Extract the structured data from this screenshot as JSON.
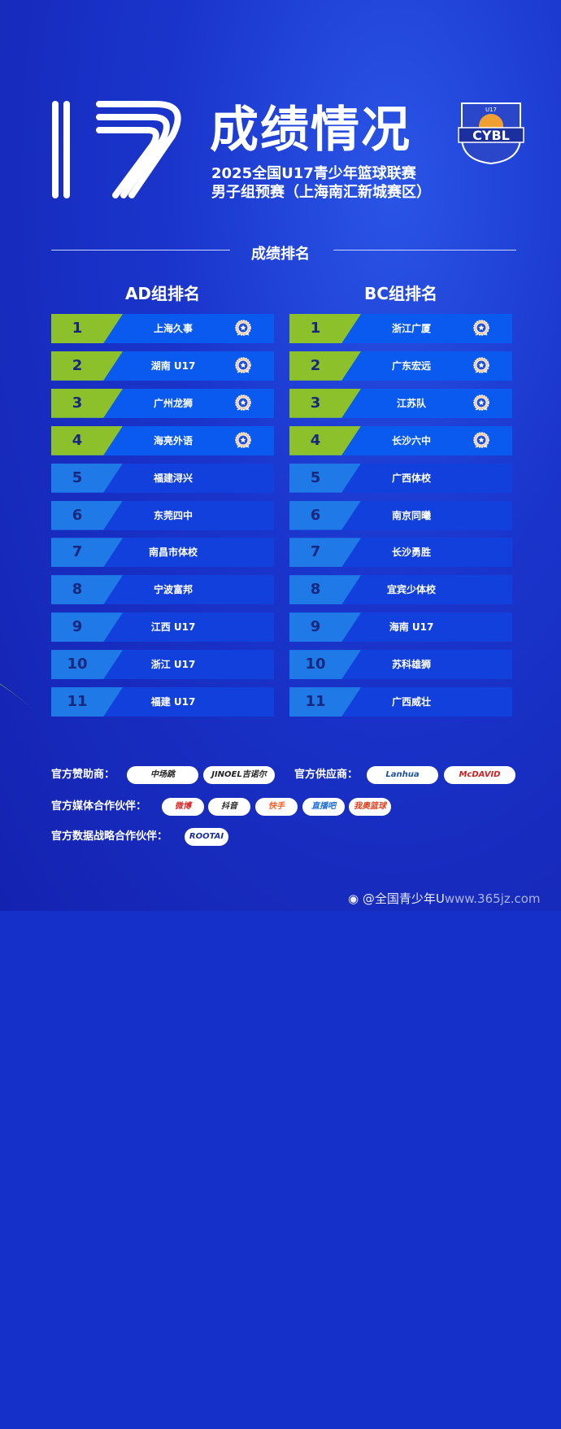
{
  "header": {
    "number_graphic": "17",
    "title": "成绩情况",
    "subtitle_line1": "2025全国U17青少年篮球联赛",
    "subtitle_line2": "男子组预赛（上海南汇新城赛区）",
    "logo_text": "CYBL",
    "logo_badge": "U17"
  },
  "section_title": "成绩排名",
  "groups": [
    {
      "title": "AD组排名",
      "rows": [
        {
          "rank": "1",
          "team": "上海久事",
          "medal": true
        },
        {
          "rank": "2",
          "team": "湖南 U17",
          "medal": true
        },
        {
          "rank": "3",
          "team": "广州龙狮",
          "medal": true
        },
        {
          "rank": "4",
          "team": "海亮外语",
          "medal": true
        },
        {
          "rank": "5",
          "team": "福建浔兴",
          "medal": false
        },
        {
          "rank": "6",
          "team": "东莞四中",
          "medal": false
        },
        {
          "rank": "7",
          "team": "南昌市体校",
          "medal": false
        },
        {
          "rank": "8",
          "team": "宁波富邦",
          "medal": false
        },
        {
          "rank": "9",
          "team": "江西 U17",
          "medal": false
        },
        {
          "rank": "10",
          "team": "浙江 U17",
          "medal": false
        },
        {
          "rank": "11",
          "team": "福建 U17",
          "medal": false
        }
      ]
    },
    {
      "title": "BC组排名",
      "rows": [
        {
          "rank": "1",
          "team": "浙江广厦",
          "medal": true
        },
        {
          "rank": "2",
          "team": "广东宏远",
          "medal": true
        },
        {
          "rank": "3",
          "team": "江苏队",
          "medal": true
        },
        {
          "rank": "4",
          "team": "长沙六中",
          "medal": true
        },
        {
          "rank": "5",
          "team": "广西体校",
          "medal": false
        },
        {
          "rank": "6",
          "team": "南京同曦",
          "medal": false
        },
        {
          "rank": "7",
          "team": "长沙勇胜",
          "medal": false
        },
        {
          "rank": "8",
          "team": "宜宾少体校",
          "medal": false
        },
        {
          "rank": "9",
          "team": "海南 U17",
          "medal": false
        },
        {
          "rank": "10",
          "team": "苏科雄狮",
          "medal": false
        },
        {
          "rank": "11",
          "team": "广西威壮",
          "medal": false
        }
      ]
    }
  ],
  "sponsors": {
    "sponsor_label": "官方赞助商：",
    "sponsor_logos": [
      "中场跳",
      "JINOEL吉诺尔"
    ],
    "supplier_label": "官方供应商：",
    "supplier_logos": [
      "Lanhua",
      "McDAVID"
    ],
    "media_label": "官方媒体合作伙伴：",
    "media_logos": [
      "微博",
      "抖音",
      "快手",
      "直播吧",
      "我奥篮球"
    ],
    "data_label": "官方数据战略合作伙伴：",
    "data_logos": [
      "ROOTAI"
    ]
  },
  "watermark": {
    "weibo_handle": "@全国青少年U",
    "site": "www.365jz.com"
  },
  "colors": {
    "background": "#1530c8",
    "accent_green": "#8cc12b",
    "top_row": "#0a5af0",
    "row": "#1240dc",
    "rank_light": "#1f7ae8",
    "rank_text": "#17287e"
  }
}
